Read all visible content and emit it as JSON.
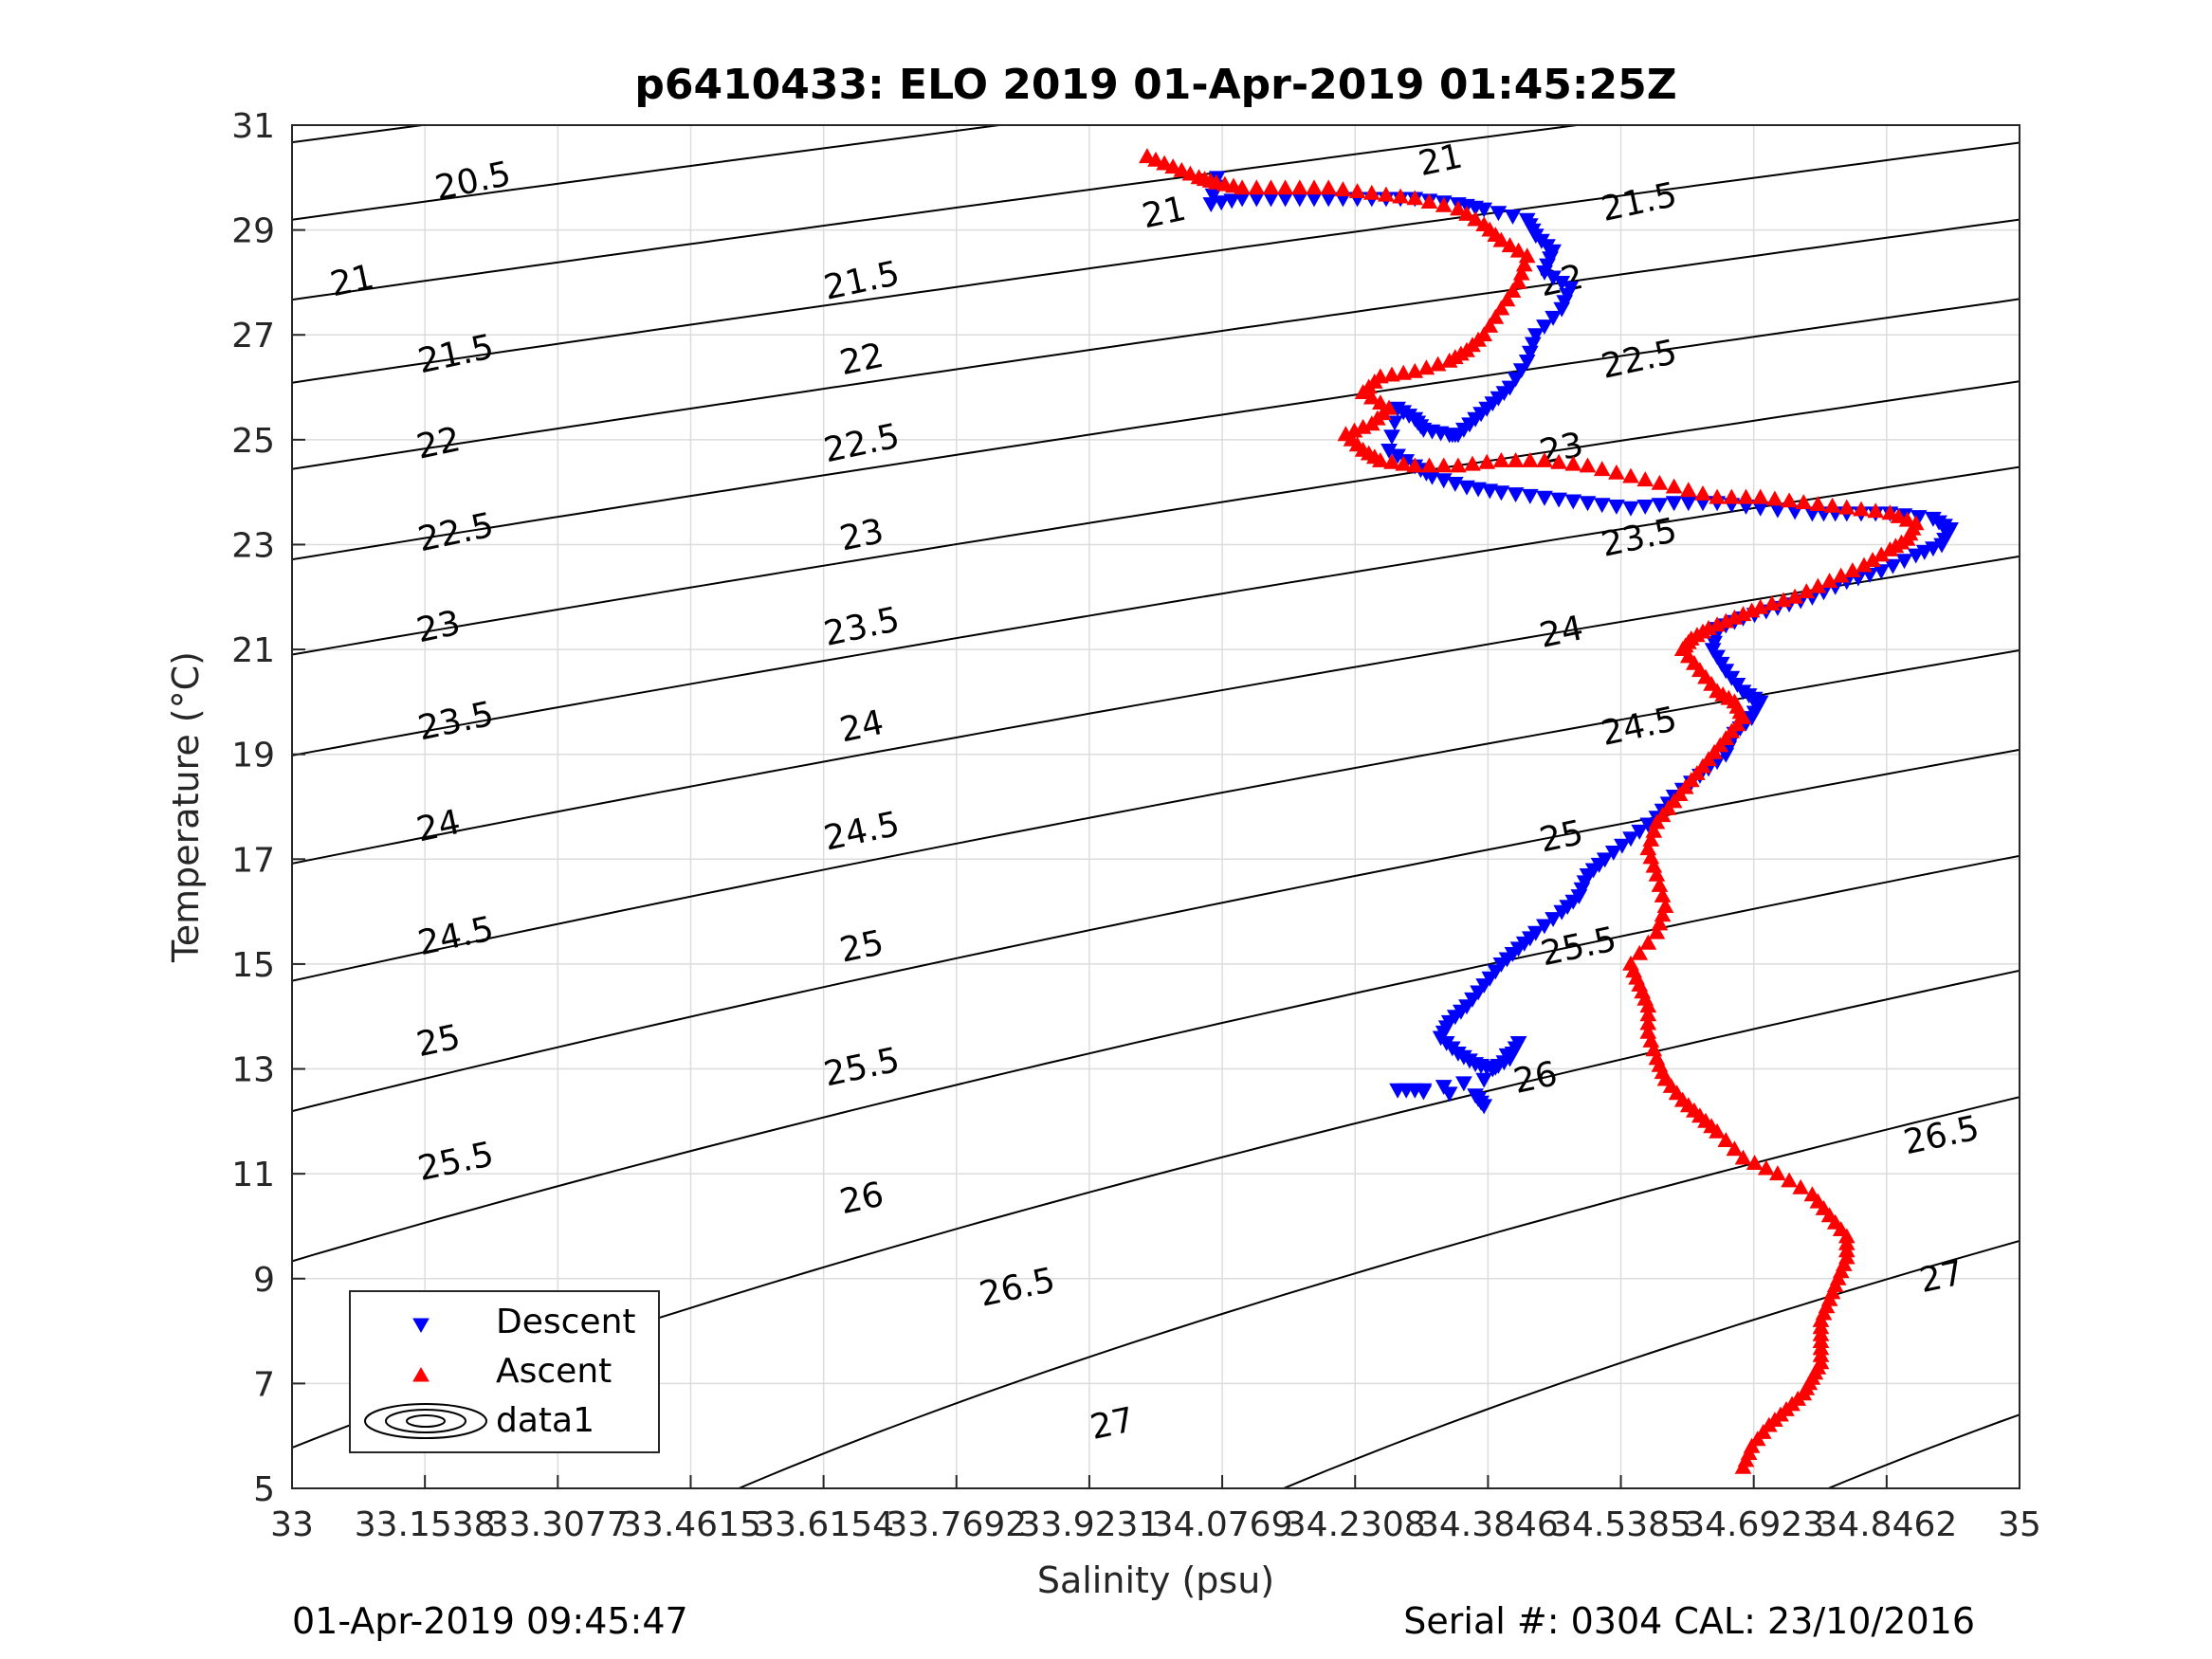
{
  "chart_data": {
    "type": "scatter",
    "title": "p6410433: ELO 2019 01-Apr-2019 01:45:25Z",
    "xlabel": "Salinity (psu)",
    "ylabel": "Temperature (°C)",
    "xlim": [
      33,
      35
    ],
    "ylim": [
      5,
      31
    ],
    "x_tick_labels": [
      "33",
      "33.1538",
      "33.3077",
      "33.4615",
      "33.6154",
      "33.7692",
      "33.9231",
      "34.0769",
      "34.2308",
      "34.3846",
      "34.5385",
      "34.6923",
      "34.8462",
      "35"
    ],
    "y_tick_labels": [
      "5",
      "7",
      "9",
      "11",
      "13",
      "15",
      "17",
      "19",
      "21",
      "23",
      "25",
      "27",
      "29",
      "31"
    ],
    "grid": true,
    "legend": {
      "placement": "bottom-left",
      "entries": [
        "Descent",
        "Ascent",
        "data1"
      ]
    },
    "density_contours": {
      "name": "data1",
      "levels": [
        20.5,
        21,
        21.5,
        22,
        22.5,
        23,
        23.5,
        24,
        24.5,
        25,
        25.5,
        26,
        26.5,
        27
      ],
      "label_positions": [
        {
          "text": "21",
          "s": 34.01,
          "t": 29.3
        },
        {
          "text": "21.5",
          "s": 33.66,
          "t": 28.0
        },
        {
          "text": "22",
          "s": 33.66,
          "t": 26.5
        },
        {
          "text": "22.5",
          "s": 33.66,
          "t": 24.9
        },
        {
          "text": "23",
          "s": 33.66,
          "t": 23.15
        },
        {
          "text": "23.5",
          "s": 33.66,
          "t": 21.4
        },
        {
          "text": "24",
          "s": 33.66,
          "t": 19.5
        },
        {
          "text": "24.5",
          "s": 33.66,
          "t": 17.5
        },
        {
          "text": "25",
          "s": 33.66,
          "t": 15.3
        },
        {
          "text": "25.5",
          "s": 33.66,
          "t": 13.0
        },
        {
          "text": "26",
          "s": 33.66,
          "t": 10.5
        },
        {
          "text": "26.5",
          "s": 33.84,
          "t": 8.8
        },
        {
          "text": "27",
          "s": 33.95,
          "t": 6.2
        },
        {
          "text": "20.5",
          "s": 33.21,
          "t": 29.9
        },
        {
          "text": "21",
          "s": 33.07,
          "t": 28.0
        },
        {
          "text": "21.5",
          "s": 33.19,
          "t": 26.6
        },
        {
          "text": "22",
          "s": 33.17,
          "t": 24.9
        },
        {
          "text": "22.5",
          "s": 33.19,
          "t": 23.2
        },
        {
          "text": "23",
          "s": 33.17,
          "t": 21.4
        },
        {
          "text": "23.5",
          "s": 33.19,
          "t": 19.6
        },
        {
          "text": "24",
          "s": 33.17,
          "t": 17.6
        },
        {
          "text": "24.5",
          "s": 33.19,
          "t": 15.5
        },
        {
          "text": "25",
          "s": 33.17,
          "t": 13.5
        },
        {
          "text": "25.5",
          "s": 33.19,
          "t": 11.2
        },
        {
          "text": "26",
          "s": 33.15,
          "t": 6.8
        },
        {
          "text": "21",
          "s": 34.33,
          "t": 30.3
        },
        {
          "text": "21.5",
          "s": 34.56,
          "t": 29.5
        },
        {
          "text": "22",
          "s": 34.47,
          "t": 28.0
        },
        {
          "text": "22.5",
          "s": 34.56,
          "t": 26.5
        },
        {
          "text": "23",
          "s": 34.47,
          "t": 24.8
        },
        {
          "text": "23.5",
          "s": 34.56,
          "t": 23.1
        },
        {
          "text": "24",
          "s": 34.47,
          "t": 21.3
        },
        {
          "text": "24.5",
          "s": 34.56,
          "t": 19.5
        },
        {
          "text": "25",
          "s": 34.47,
          "t": 17.4
        },
        {
          "text": "25.5",
          "s": 34.49,
          "t": 15.3
        },
        {
          "text": "26",
          "s": 34.44,
          "t": 12.8
        },
        {
          "text": "26.5",
          "s": 34.91,
          "t": 11.7
        },
        {
          "text": "27",
          "s": 34.91,
          "t": 9.0
        }
      ]
    },
    "series": [
      {
        "name": "Descent",
        "marker": "triangle-down",
        "color": "#0000ff",
        "x": [
          34.071,
          34.064,
          34.1,
          34.15,
          34.2,
          34.25,
          34.3,
          34.35,
          34.38,
          34.43,
          34.44,
          34.46,
          34.45,
          34.48,
          34.47,
          34.44,
          34.43,
          34.41,
          34.39,
          34.37,
          34.35,
          34.34,
          34.31,
          34.3,
          34.28,
          34.27,
          34.3,
          34.32,
          34.36,
          34.4,
          34.45,
          34.5,
          34.55,
          34.6,
          34.65,
          34.7,
          34.76,
          34.8,
          34.85,
          34.9,
          34.92,
          34.91,
          34.88,
          34.84,
          34.8,
          34.76,
          34.72,
          34.68,
          34.65,
          34.645,
          34.66,
          34.68,
          34.7,
          34.69,
          34.67,
          34.66,
          34.63,
          34.6,
          34.58,
          34.55,
          34.52,
          34.5,
          34.49,
          34.47,
          34.44,
          34.42,
          34.4,
          34.38,
          34.36,
          34.34,
          34.33,
          34.35,
          34.37,
          34.39,
          34.41,
          34.42,
          34.38,
          34.31,
          34.28,
          34.37,
          34.38
        ],
        "y": [
          30.0,
          29.5,
          29.6,
          29.6,
          29.6,
          29.6,
          29.6,
          29.5,
          29.4,
          29.2,
          28.9,
          28.6,
          28.2,
          27.9,
          27.5,
          27.0,
          26.5,
          26.0,
          25.7,
          25.4,
          25.1,
          25.1,
          25.2,
          25.4,
          25.6,
          24.8,
          24.5,
          24.3,
          24.1,
          24.0,
          23.9,
          23.8,
          23.7,
          23.8,
          23.8,
          23.7,
          23.6,
          23.6,
          23.6,
          23.5,
          23.3,
          23.0,
          22.8,
          22.5,
          22.3,
          22.0,
          21.8,
          21.6,
          21.4,
          21.0,
          20.6,
          20.2,
          20.0,
          19.7,
          19.4,
          19.0,
          18.6,
          18.2,
          17.8,
          17.4,
          17.0,
          16.7,
          16.3,
          16.0,
          15.6,
          15.3,
          15.0,
          14.6,
          14.2,
          13.9,
          13.6,
          13.3,
          13.1,
          13.0,
          13.2,
          13.5,
          12.8,
          12.6,
          12.6,
          12.5,
          12.3
        ]
      },
      {
        "name": "Ascent",
        "marker": "triangle-up",
        "color": "#ff0000",
        "x": [
          33.99,
          34.02,
          34.05,
          34.07,
          34.1,
          34.15,
          34.2,
          34.25,
          34.3,
          34.35,
          34.38,
          34.4,
          34.43,
          34.42,
          34.4,
          34.38,
          34.36,
          34.34,
          34.3,
          34.26,
          34.24,
          34.27,
          34.25,
          34.22,
          34.24,
          34.26,
          34.3,
          34.35,
          34.4,
          34.45,
          34.5,
          34.55,
          34.6,
          34.65,
          34.7,
          34.75,
          34.8,
          34.85,
          34.88,
          34.87,
          34.85,
          34.82,
          34.78,
          34.74,
          34.7,
          34.67,
          34.64,
          34.62,
          34.61,
          34.63,
          34.65,
          34.67,
          34.68,
          34.66,
          34.64,
          34.62,
          34.6,
          34.58,
          34.57,
          34.58,
          34.59,
          34.58,
          34.55,
          34.56,
          34.57,
          34.57,
          34.58,
          34.59,
          34.61,
          34.63,
          34.65,
          34.68,
          34.72,
          34.76,
          34.78,
          34.8,
          34.8,
          34.79,
          34.78,
          34.77,
          34.77,
          34.77,
          34.76,
          34.75,
          34.73,
          34.71,
          34.69,
          34.68
        ],
        "y": [
          30.4,
          30.2,
          30.0,
          29.9,
          29.8,
          29.8,
          29.8,
          29.7,
          29.6,
          29.4,
          29.1,
          28.8,
          28.5,
          28.0,
          27.5,
          27.0,
          26.7,
          26.5,
          26.3,
          26.2,
          25.9,
          25.6,
          25.3,
          25.1,
          24.8,
          24.6,
          24.5,
          24.5,
          24.6,
          24.6,
          24.5,
          24.3,
          24.1,
          23.9,
          23.9,
          23.8,
          23.7,
          23.6,
          23.4,
          23.1,
          22.9,
          22.6,
          22.3,
          22.0,
          21.8,
          21.6,
          21.4,
          21.2,
          21.0,
          20.6,
          20.2,
          20.0,
          19.7,
          19.3,
          18.9,
          18.5,
          18.1,
          17.7,
          17.2,
          16.7,
          16.1,
          15.6,
          15.0,
          14.6,
          14.2,
          13.7,
          13.2,
          12.8,
          12.4,
          12.1,
          11.8,
          11.3,
          11.0,
          10.6,
          10.2,
          9.8,
          9.4,
          9.0,
          8.6,
          8.2,
          7.8,
          7.4,
          7.1,
          6.8,
          6.5,
          6.2,
          5.8,
          5.4
        ]
      }
    ]
  },
  "footer": {
    "datetime": "01-Apr-2019 09:45:47",
    "serial": "Serial #: 0304  CAL: 23/10/2016"
  }
}
